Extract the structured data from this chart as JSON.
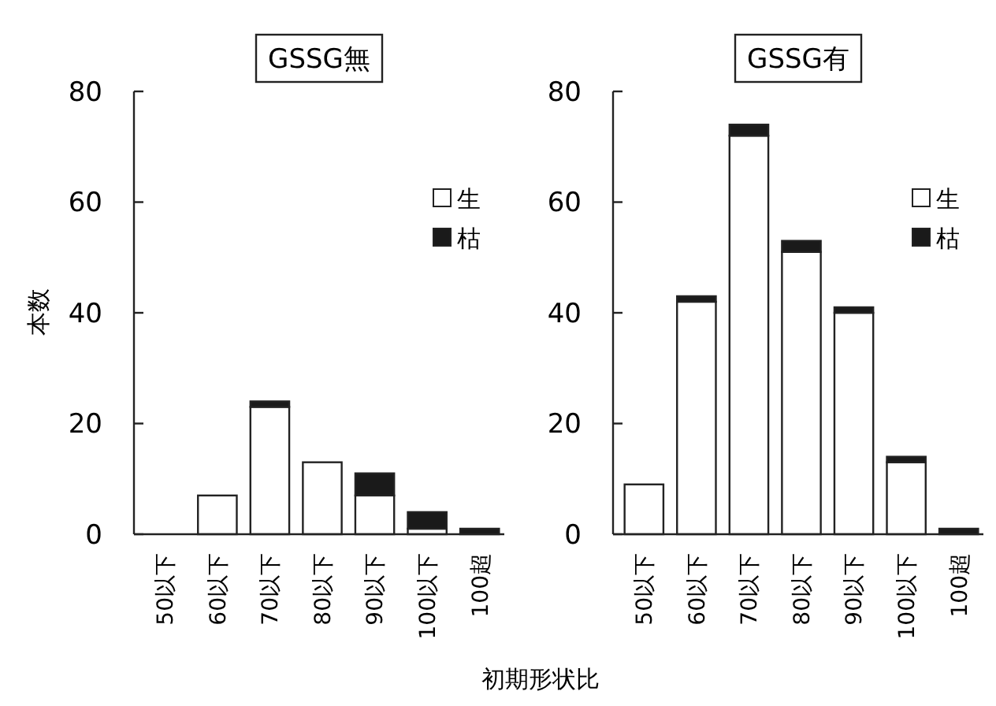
{
  "chart_data": [
    {
      "type": "bar",
      "title": "GSSG無",
      "ylabel": "本数",
      "xlabel": "初期形状比",
      "categories": [
        "50以下",
        "60以下",
        "70以下",
        "80以下",
        "90以下",
        "100以下",
        "100超"
      ],
      "stacked": true,
      "ylim": [
        0,
        80
      ],
      "yticks": [
        0,
        20,
        40,
        60,
        80
      ],
      "legend": "right",
      "series": [
        {
          "name": "生",
          "color": "#ffffff",
          "values": [
            0,
            7,
            23,
            13,
            7,
            1,
            0
          ]
        },
        {
          "name": "枯",
          "color": "#1a1a1a",
          "values": [
            0,
            0,
            1,
            0,
            4,
            3,
            1
          ]
        }
      ]
    },
    {
      "type": "bar",
      "title": "GSSG有",
      "categories": [
        "50以下",
        "60以下",
        "70以下",
        "80以下",
        "90以下",
        "100以下",
        "100超"
      ],
      "stacked": true,
      "ylim": [
        0,
        80
      ],
      "yticks": [
        0,
        20,
        40,
        60,
        80
      ],
      "legend": "right",
      "series": [
        {
          "name": "生",
          "color": "#ffffff",
          "values": [
            9,
            42,
            72,
            51,
            40,
            13,
            0
          ]
        },
        {
          "name": "枯",
          "color": "#1a1a1a",
          "values": [
            0,
            1,
            2,
            2,
            1,
            1,
            1
          ]
        }
      ]
    }
  ]
}
